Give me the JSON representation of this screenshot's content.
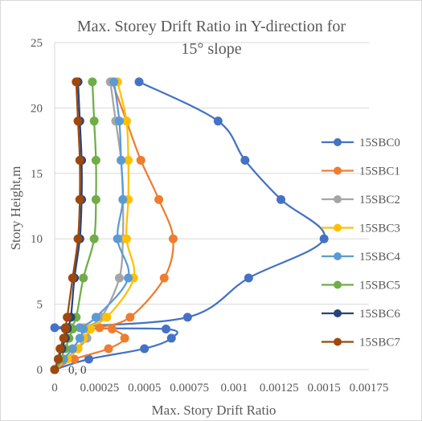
{
  "chart_data": {
    "type": "line",
    "title_line1": "Max. Storey Drift Ratio in Y-direction for",
    "title_line2": "15° slope",
    "xlabel": "Max. Story Drift Ratio",
    "ylabel": "Story Height,m",
    "xlim": [
      0,
      0.00175
    ],
    "ylim": [
      0,
      25
    ],
    "x_ticks": [
      0,
      0.00025,
      0.0005,
      0.00075,
      0.001,
      0.00125,
      0.0015,
      0.00175
    ],
    "x_tick_labels": [
      "0",
      "0.00025",
      "0.0005",
      "0.00075",
      "0.001",
      "0.00125",
      "0.0015",
      "0.00175"
    ],
    "y_ticks": [
      0,
      5,
      10,
      15,
      20,
      25
    ],
    "y_tick_labels": [
      "0",
      "5",
      "10",
      "15",
      "20",
      "25"
    ],
    "grid": "horizontal",
    "legend_position": "right",
    "origin_label": "0, 0",
    "series": [
      {
        "name": "15SBC0",
        "color": "#4472C4",
        "points": [
          [
            0,
            0
          ],
          [
            0.00019,
            0.8
          ],
          [
            0.0005,
            1.6
          ],
          [
            0.00065,
            2.4
          ],
          [
            0.00062,
            3.1
          ],
          [
            0,
            3.2
          ],
          [
            0.00074,
            4
          ],
          [
            0.00108,
            7
          ],
          [
            0.0015,
            10
          ],
          [
            0.00126,
            13
          ],
          [
            0.00106,
            16
          ],
          [
            0.00091,
            19
          ],
          [
            0.00047,
            22
          ]
        ]
      },
      {
        "name": "15SBC1",
        "color": "#ED7D31",
        "points": [
          [
            0,
            0
          ],
          [
            0.00011,
            0.8
          ],
          [
            0.0003,
            1.6
          ],
          [
            0.00039,
            2.4
          ],
          [
            0.00032,
            3.1
          ],
          [
            0.00025,
            3.2
          ],
          [
            0.00042,
            4
          ],
          [
            0.00061,
            7
          ],
          [
            0.00066,
            10
          ],
          [
            0.00058,
            13
          ],
          [
            0.00048,
            16
          ],
          [
            0.0004,
            19
          ],
          [
            0.00032,
            22
          ]
        ]
      },
      {
        "name": "15SBC2",
        "color": "#A5A5A5",
        "points": [
          [
            0,
            0
          ],
          [
            6e-05,
            0.8
          ],
          [
            0.00013,
            1.6
          ],
          [
            0.00018,
            2.4
          ],
          [
            0.00019,
            3.1
          ],
          [
            0.00016,
            3.2
          ],
          [
            0.00026,
            4
          ],
          [
            0.00036,
            7
          ],
          [
            0.00038,
            10
          ],
          [
            0.00038,
            13
          ],
          [
            0.00037,
            16
          ],
          [
            0.00034,
            19
          ],
          [
            0.00031,
            22
          ]
        ]
      },
      {
        "name": "15SBC3",
        "color": "#FFC000",
        "points": [
          [
            0,
            0
          ],
          [
            7e-05,
            0.8
          ],
          [
            0.00013,
            1.6
          ],
          [
            0.00016,
            2.4
          ],
          [
            0.0002,
            3.1
          ],
          [
            0.00017,
            3.2
          ],
          [
            0.00029,
            4
          ],
          [
            0.00044,
            7
          ],
          [
            0.0004,
            10
          ],
          [
            0.00041,
            13
          ],
          [
            0.00041,
            16
          ],
          [
            0.0004,
            19
          ],
          [
            0.00035,
            22
          ]
        ]
      },
      {
        "name": "15SBC4",
        "color": "#5B9BD5",
        "points": [
          [
            0,
            0
          ],
          [
            5e-05,
            0.8
          ],
          [
            0.0001,
            1.6
          ],
          [
            0.00014,
            2.4
          ],
          [
            0.00016,
            3.1
          ],
          [
            0.00014,
            3.2
          ],
          [
            0.00023,
            4
          ],
          [
            0.00041,
            7
          ],
          [
            0.00035,
            10
          ],
          [
            0.00038,
            13
          ],
          [
            0.00037,
            16
          ],
          [
            0.00036,
            19
          ],
          [
            0.00033,
            22
          ]
        ]
      },
      {
        "name": "15SBC5",
        "color": "#70AD47",
        "points": [
          [
            0,
            0
          ],
          [
            3e-05,
            0.8
          ],
          [
            6e-05,
            1.6
          ],
          [
            8e-05,
            2.4
          ],
          [
            0.0001,
            3.1
          ],
          [
            9e-05,
            3.2
          ],
          [
            0.00012,
            4
          ],
          [
            0.00016,
            7
          ],
          [
            0.00022,
            10
          ],
          [
            0.00023,
            13
          ],
          [
            0.00023,
            16
          ],
          [
            0.00022,
            19
          ],
          [
            0.00021,
            22
          ]
        ]
      },
      {
        "name": "15SBC6",
        "color": "#264478",
        "points": [
          [
            0,
            0
          ],
          [
            2e-05,
            0.8
          ],
          [
            4e-05,
            1.6
          ],
          [
            6e-05,
            2.4
          ],
          [
            7e-05,
            3.1
          ],
          [
            7e-05,
            3.2
          ],
          [
            9e-05,
            4
          ],
          [
            0.00011,
            7
          ],
          [
            0.00014,
            10
          ],
          [
            0.00015,
            13
          ],
          [
            0.00015,
            16
          ],
          [
            0.00014,
            19
          ],
          [
            0.00013,
            22
          ]
        ]
      },
      {
        "name": "15SBC7",
        "color": "#9E480E",
        "points": [
          [
            0,
            0
          ],
          [
            2e-05,
            0.8
          ],
          [
            3e-05,
            1.6
          ],
          [
            5e-05,
            2.4
          ],
          [
            6e-05,
            3.1
          ],
          [
            6e-05,
            3.2
          ],
          [
            7e-05,
            4
          ],
          [
            0.0001,
            7
          ],
          [
            0.00013,
            10
          ],
          [
            0.00014,
            13
          ],
          [
            0.00014,
            16
          ],
          [
            0.00013,
            19
          ],
          [
            0.00012,
            22
          ]
        ]
      }
    ]
  }
}
